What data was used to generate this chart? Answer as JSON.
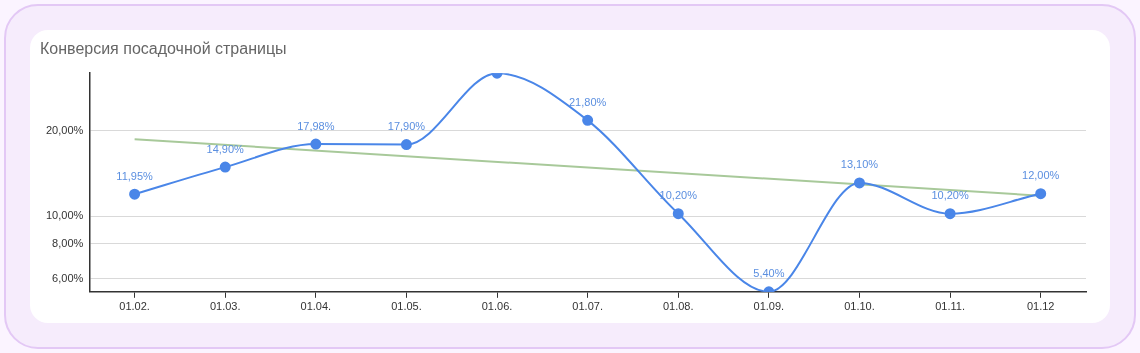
{
  "chart_data": {
    "type": "line",
    "title": "Конверсия посадочной страницы",
    "categories": [
      "01.02.",
      "01.03.",
      "01.04.",
      "01.05.",
      "01.06.",
      "01.07.",
      "01.08.",
      "01.09.",
      "01.10.",
      "01.11.",
      "01.12"
    ],
    "series": [
      {
        "color": "#4a86e8",
        "marker": "circle",
        "values": [
          11.95,
          14.9,
          17.98,
          17.9,
          32,
          21.8,
          10.2,
          5.4,
          13.1,
          10.2,
          12
        ],
        "value_labels": [
          "11,95%",
          "14,90%",
          "17,98%",
          "17,90%",
          null,
          "21,80%",
          "10,20%",
          "5,40%",
          "13,10%",
          "10,20%",
          "12,00%"
        ]
      },
      {
        "color": "#a8c99a",
        "marker": "none",
        "values": [
          18.7,
          null,
          null,
          null,
          null,
          null,
          null,
          null,
          null,
          null,
          11.8
        ]
      }
    ],
    "log": true,
    "ylim": [
      5.4,
      32
    ],
    "yticks": [
      {
        "value": 6,
        "label": "6,00%"
      },
      {
        "value": 8,
        "label": "8,00%"
      },
      {
        "value": 10,
        "label": "10,00%"
      },
      {
        "value": 20,
        "label": "20,00%"
      }
    ],
    "grid": "y",
    "legend": false
  }
}
